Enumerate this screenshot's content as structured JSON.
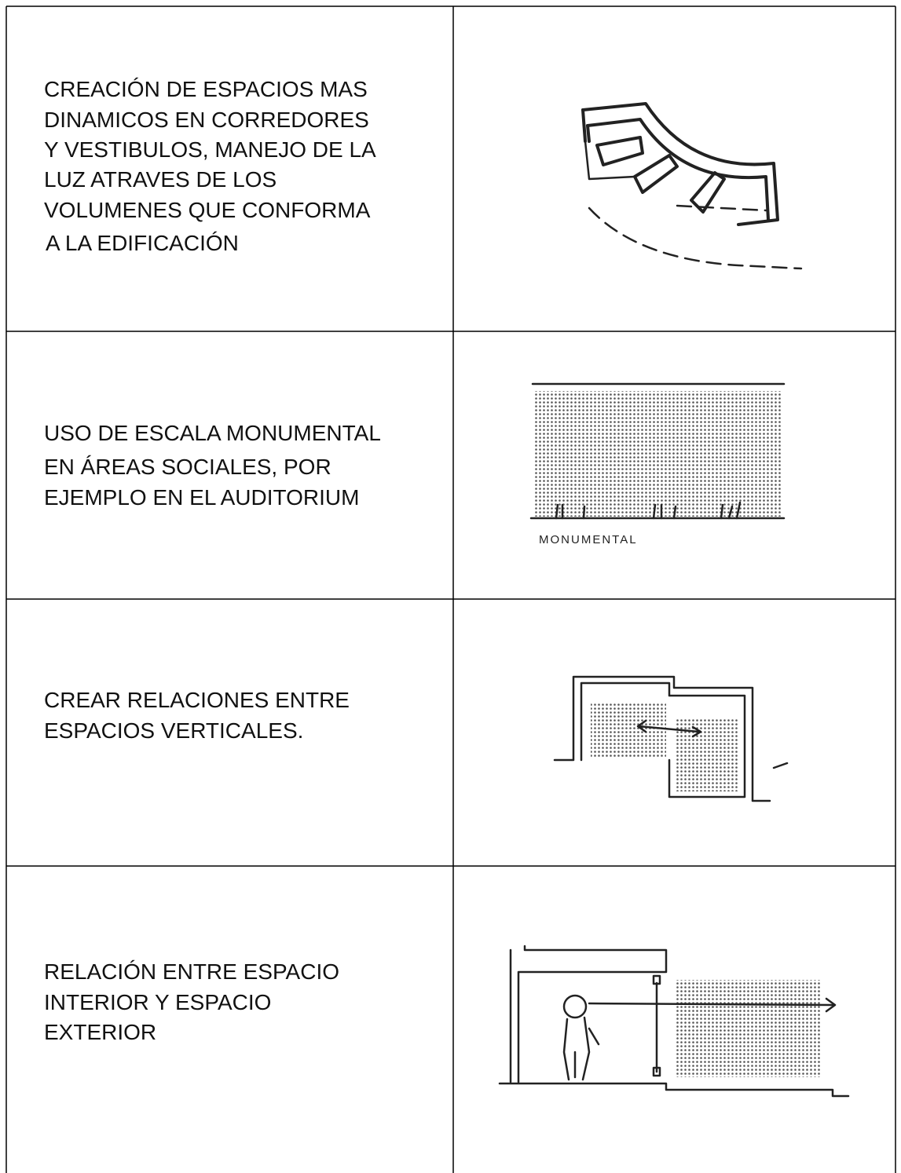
{
  "rows": [
    {
      "lines": [
        "CREACIÓN DE ESPACIOS MAS",
        "DINAMICOS EN CORREDORES",
        "Y VESTIBULOS, MANEJO DE LA",
        "LUZ ATRAVES DE LOS",
        "VOLUMENES QUE CONFORMA",
        "A LA EDIFICACIÓN"
      ]
    },
    {
      "lines": [
        "USO DE ESCALA MONUMENTAL",
        "EN ÁREAS SOCIALES, POR",
        "EJEMPLO EN EL AUDITORIUM"
      ],
      "sketch_label": "MONUMENTAL"
    },
    {
      "lines": [
        "CREAR RELACIONES ENTRE",
        "ESPACIOS VERTICALES."
      ]
    },
    {
      "lines": [
        "RELACIÓN ENTRE ESPACIO",
        "INTERIOR Y ESPACIO",
        "EXTERIOR"
      ]
    }
  ]
}
